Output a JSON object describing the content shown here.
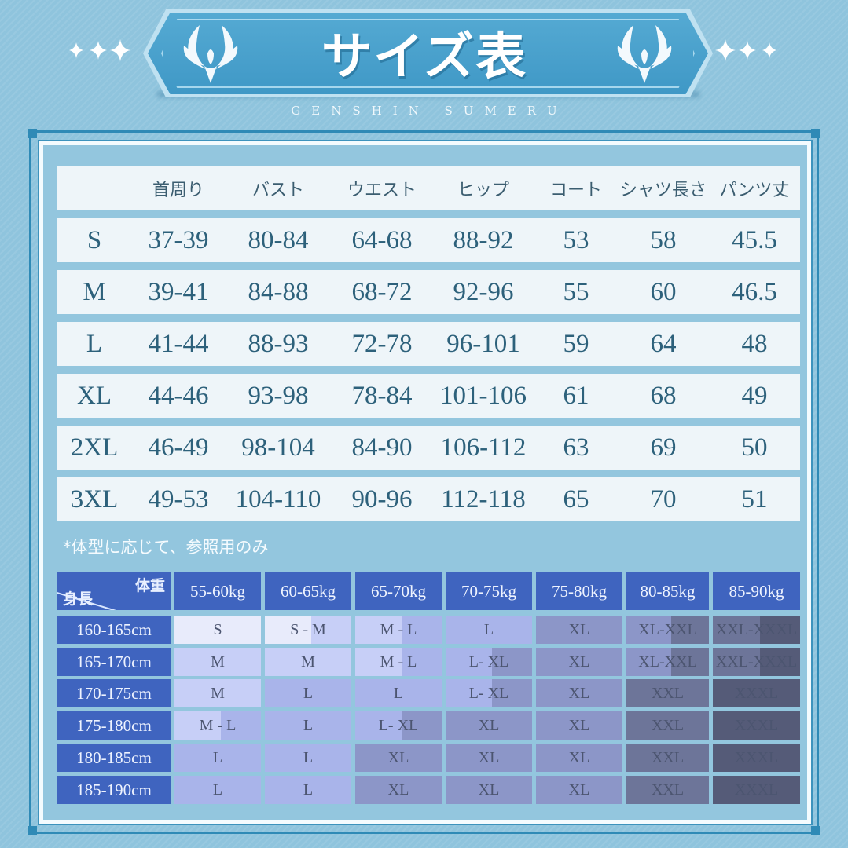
{
  "header": {
    "title": "サイズ表",
    "subtitle": "GENSHIN SUMERU",
    "decorations": [
      "sparkle-icon",
      "wing-emblem-icon"
    ]
  },
  "measurement_table": {
    "columns": [
      "",
      "首周り",
      "バスト",
      "ウエスト",
      "ヒップ",
      "コート",
      "シャツ長さ",
      "パンツ丈"
    ],
    "rows": [
      [
        "S",
        "37-39",
        "80-84",
        "64-68",
        "88-92",
        "53",
        "58",
        "45.5"
      ],
      [
        "M",
        "39-41",
        "84-88",
        "68-72",
        "92-96",
        "55",
        "60",
        "46.5"
      ],
      [
        "L",
        "41-44",
        "88-93",
        "72-78",
        "96-101",
        "59",
        "64",
        "48"
      ],
      [
        "XL",
        "44-46",
        "93-98",
        "78-84",
        "101-106",
        "61",
        "68",
        "49"
      ],
      [
        "2XL",
        "46-49",
        "98-104",
        "84-90",
        "106-112",
        "63",
        "69",
        "50"
      ],
      [
        "3XL",
        "49-53",
        "104-110",
        "90-96",
        "112-118",
        "65",
        "70",
        "51"
      ]
    ]
  },
  "note": "*体型に応じて、参照用のみ",
  "size_guide": {
    "corner_weight_label": "体重",
    "corner_height_label": "身長",
    "weights": [
      "55-60kg",
      "60-65kg",
      "65-70kg",
      "70-75kg",
      "75-80kg",
      "80-85kg",
      "85-90kg"
    ],
    "heights": [
      "160-165cm",
      "165-170cm",
      "170-175cm",
      "175-180cm",
      "180-185cm",
      "185-190cm"
    ],
    "sizes": [
      [
        "S",
        "S - M",
        "M - L",
        "L",
        "XL",
        "XL-XXL",
        "XXL-XXXL"
      ],
      [
        "M",
        "M",
        "M - L",
        "L- XL",
        "XL",
        "XL-XXL",
        "XXL-XXXL"
      ],
      [
        "M",
        "L",
        "L",
        "L- XL",
        "XL",
        "XXL",
        "XXXL"
      ],
      [
        "M - L",
        "L",
        "L- XL",
        "XL",
        "XL",
        "XXL",
        "XXXL"
      ],
      [
        "L",
        "L",
        "XL",
        "XL",
        "XL",
        "XXL",
        "XXXL"
      ],
      [
        "L",
        "L",
        "XL",
        "XL",
        "XL",
        "XXL",
        "XXXL"
      ]
    ]
  },
  "colors": {
    "background": "#8fc4dd",
    "banner": "#4a9fca",
    "table_header_blue": "#3f64bf",
    "row_bg": "#eef5f9",
    "text_teal": "#2d617b",
    "size_S": "#e8ebfb",
    "size_M": "#c7cff7",
    "size_L": "#a9b4ea",
    "size_XL": "#8c96c8",
    "size_XXL": "#6d7599",
    "size_XXXL": "#555b78"
  }
}
